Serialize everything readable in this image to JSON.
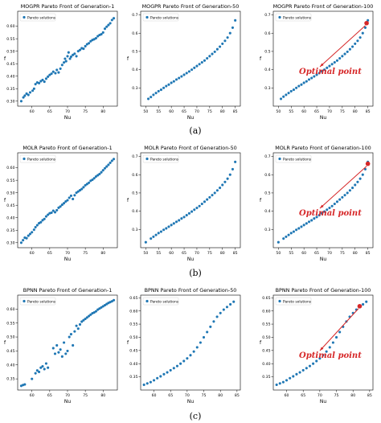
{
  "colors": {
    "points": "#1f77b4",
    "optimal": "#d62728",
    "arrow": "#d62728",
    "axis": "#000000"
  },
  "row_captions": [
    "(a)",
    "(b)",
    "(c)"
  ],
  "chart_data": [
    {
      "type": "scatter",
      "title": "MOGPR Pareto Front of Generation-1",
      "xlabel": "Nu",
      "ylabel": "f",
      "legend": "Pareto solutions",
      "legend_position": "top-left",
      "xlim": [
        56,
        84
      ],
      "ylim": [
        0.28,
        0.66
      ],
      "xticks": [
        60,
        65,
        70,
        75,
        80
      ],
      "yticks": [
        0.3,
        0.35,
        0.4,
        0.45,
        0.5,
        0.55,
        0.6
      ],
      "x": [
        57.0,
        57.6,
        58.0,
        58.5,
        59.0,
        59.5,
        60.2,
        60.6,
        61.0,
        61.5,
        62.0,
        62.5,
        63.0,
        63.5,
        64.0,
        64.5,
        65.0,
        65.5,
        66.0,
        66.6,
        67.0,
        67.5,
        68.0,
        68.5,
        69.0,
        69.3,
        69.6,
        70.0,
        70.3,
        70.7,
        71.0,
        71.5,
        72.0,
        72.5,
        73.0,
        73.5,
        74.0,
        74.5,
        75.0,
        75.5,
        76.0,
        76.5,
        77.0,
        77.5,
        78.0,
        78.5,
        79.0,
        79.5,
        80.0,
        80.5,
        81.0,
        81.5,
        82.0,
        82.5,
        83.0
      ],
      "y": [
        0.3,
        0.315,
        0.322,
        0.33,
        0.325,
        0.335,
        0.342,
        0.35,
        0.368,
        0.375,
        0.372,
        0.38,
        0.385,
        0.378,
        0.39,
        0.398,
        0.405,
        0.41,
        0.418,
        0.412,
        0.425,
        0.415,
        0.43,
        0.445,
        0.455,
        0.47,
        0.46,
        0.48,
        0.495,
        0.47,
        0.478,
        0.485,
        0.49,
        0.48,
        0.5,
        0.505,
        0.512,
        0.51,
        0.52,
        0.528,
        0.532,
        0.54,
        0.545,
        0.548,
        0.552,
        0.56,
        0.565,
        0.568,
        0.575,
        0.59,
        0.598,
        0.605,
        0.612,
        0.625,
        0.632
      ]
    },
    {
      "type": "scatter",
      "title": "MOGPR Pareto Front of Generation-50",
      "xlabel": "Nu",
      "ylabel": "f",
      "legend": "Pareto solutions",
      "legend_position": "top-left",
      "xlim": [
        48,
        87
      ],
      "ylim": [
        0.2,
        0.72
      ],
      "xticks": [
        50,
        55,
        60,
        65,
        70,
        75,
        80,
        85
      ],
      "yticks": [
        0.3,
        0.4,
        0.5,
        0.6,
        0.7
      ],
      "x": [
        51.0,
        52.0,
        53.0,
        54.0,
        55.0,
        56.0,
        57.0,
        58.0,
        59.0,
        60.0,
        61.0,
        62.0,
        63.0,
        64.0,
        65.0,
        66.0,
        67.0,
        68.0,
        69.0,
        70.0,
        71.0,
        72.0,
        73.0,
        74.0,
        75.0,
        76.0,
        77.0,
        78.0,
        79.0,
        80.0,
        81.0,
        82.0,
        83.0,
        84.0,
        85.0
      ],
      "y": [
        0.24,
        0.25,
        0.262,
        0.272,
        0.282,
        0.29,
        0.3,
        0.31,
        0.318,
        0.328,
        0.336,
        0.346,
        0.354,
        0.363,
        0.372,
        0.381,
        0.39,
        0.4,
        0.41,
        0.42,
        0.43,
        0.44,
        0.45,
        0.462,
        0.474,
        0.486,
        0.498,
        0.512,
        0.526,
        0.542,
        0.558,
        0.576,
        0.6,
        0.63,
        0.67
      ]
    },
    {
      "type": "scatter",
      "title": "MOGPR Pareto Front of Generation-100",
      "xlabel": "Nu",
      "ylabel": "f",
      "legend": "Pareto solutions",
      "legend_position": "top-left",
      "xlim": [
        48,
        87
      ],
      "ylim": [
        0.2,
        0.72
      ],
      "xticks": [
        50,
        55,
        60,
        65,
        70,
        75,
        80,
        85
      ],
      "yticks": [
        0.3,
        0.4,
        0.5,
        0.6,
        0.7
      ],
      "x": [
        51.0,
        52.0,
        53.0,
        54.0,
        55.0,
        56.0,
        57.0,
        58.0,
        59.0,
        60.0,
        61.0,
        62.0,
        63.0,
        64.0,
        65.0,
        66.0,
        67.0,
        68.0,
        69.0,
        70.0,
        71.0,
        72.0,
        73.0,
        74.0,
        75.0,
        76.0,
        77.0,
        78.0,
        79.0,
        80.0,
        81.0,
        82.0,
        83.0,
        84.0,
        85.0
      ],
      "y": [
        0.24,
        0.252,
        0.262,
        0.272,
        0.282,
        0.29,
        0.3,
        0.31,
        0.318,
        0.328,
        0.336,
        0.346,
        0.354,
        0.363,
        0.372,
        0.381,
        0.39,
        0.4,
        0.41,
        0.42,
        0.43,
        0.44,
        0.45,
        0.462,
        0.474,
        0.486,
        0.498,
        0.512,
        0.526,
        0.542,
        0.558,
        0.576,
        0.6,
        0.63,
        0.67
      ],
      "optimal_point": {
        "x": 84.5,
        "y": 0.655,
        "label": "Optimal point"
      }
    },
    {
      "type": "scatter",
      "title": "MOLR Pareto Front of Generation-1",
      "xlabel": "Nu",
      "ylabel": "f",
      "legend": "Pareto solutions",
      "legend_position": "top-left",
      "xlim": [
        56,
        84
      ],
      "ylim": [
        0.28,
        0.66
      ],
      "xticks": [
        60,
        65,
        70,
        75,
        80
      ],
      "yticks": [
        0.3,
        0.35,
        0.4,
        0.45,
        0.5,
        0.55,
        0.6
      ],
      "x": [
        57.0,
        57.5,
        58.0,
        58.5,
        59.0,
        59.5,
        60.0,
        60.6,
        61.0,
        61.5,
        62.0,
        62.5,
        63.0,
        63.5,
        64.0,
        64.5,
        65.0,
        65.5,
        66.0,
        66.5,
        67.0,
        67.5,
        68.0,
        68.5,
        69.0,
        69.5,
        70.0,
        70.5,
        71.0,
        71.5,
        72.0,
        72.5,
        73.0,
        73.5,
        74.0,
        74.5,
        75.0,
        75.5,
        76.0,
        76.5,
        77.0,
        77.5,
        78.0,
        78.5,
        79.0,
        79.5,
        80.0,
        80.5,
        81.0,
        81.5,
        82.0,
        82.5,
        83.0
      ],
      "y": [
        0.3,
        0.31,
        0.32,
        0.318,
        0.328,
        0.335,
        0.342,
        0.352,
        0.362,
        0.37,
        0.378,
        0.382,
        0.39,
        0.395,
        0.405,
        0.412,
        0.418,
        0.42,
        0.428,
        0.422,
        0.43,
        0.44,
        0.445,
        0.452,
        0.458,
        0.465,
        0.47,
        0.48,
        0.488,
        0.475,
        0.49,
        0.5,
        0.505,
        0.51,
        0.515,
        0.522,
        0.53,
        0.535,
        0.54,
        0.548,
        0.552,
        0.558,
        0.565,
        0.57,
        0.575,
        0.582,
        0.59,
        0.598,
        0.605,
        0.612,
        0.62,
        0.628,
        0.635
      ]
    },
    {
      "type": "scatter",
      "title": "MOLR Pareto Front of Generation-50",
      "xlabel": "Nu",
      "ylabel": "f",
      "legend": "Pareto solutions",
      "legend_position": "top-left",
      "xlim": [
        48,
        87
      ],
      "ylim": [
        0.2,
        0.72
      ],
      "xticks": [
        50,
        55,
        60,
        65,
        70,
        75,
        80,
        85
      ],
      "yticks": [
        0.3,
        0.4,
        0.5,
        0.6,
        0.7
      ],
      "x": [
        50.0,
        52.0,
        53.0,
        54.0,
        55.0,
        56.0,
        57.0,
        58.0,
        59.0,
        60.0,
        61.0,
        62.0,
        63.0,
        64.0,
        65.0,
        66.0,
        67.0,
        68.0,
        69.0,
        70.0,
        71.0,
        72.0,
        73.0,
        74.0,
        75.0,
        76.0,
        77.0,
        78.0,
        79.0,
        80.0,
        81.0,
        82.0,
        83.0,
        84.0,
        85.0
      ],
      "y": [
        0.23,
        0.25,
        0.26,
        0.27,
        0.28,
        0.288,
        0.298,
        0.306,
        0.315,
        0.324,
        0.333,
        0.342,
        0.35,
        0.36,
        0.368,
        0.378,
        0.388,
        0.398,
        0.408,
        0.418,
        0.428,
        0.44,
        0.452,
        0.464,
        0.476,
        0.488,
        0.5,
        0.514,
        0.528,
        0.544,
        0.56,
        0.578,
        0.6,
        0.63,
        0.67
      ]
    },
    {
      "type": "scatter",
      "title": "MOLR Pareto Front of Generation-100",
      "xlabel": "Nu",
      "ylabel": "f",
      "legend": "Pareto solutions",
      "legend_position": "top-left",
      "xlim": [
        48,
        87
      ],
      "ylim": [
        0.2,
        0.72
      ],
      "xticks": [
        50,
        55,
        60,
        65,
        70,
        75,
        80,
        85
      ],
      "yticks": [
        0.3,
        0.4,
        0.5,
        0.6,
        0.7
      ],
      "x": [
        50.0,
        52.0,
        53.0,
        54.0,
        55.0,
        56.0,
        57.0,
        58.0,
        59.0,
        60.0,
        61.0,
        62.0,
        63.0,
        64.0,
        65.0,
        66.0,
        67.0,
        68.0,
        69.0,
        70.0,
        71.0,
        72.0,
        73.0,
        74.0,
        75.0,
        76.0,
        77.0,
        78.0,
        79.0,
        80.0,
        81.0,
        82.0,
        83.0,
        84.0,
        85.0
      ],
      "y": [
        0.23,
        0.25,
        0.26,
        0.27,
        0.28,
        0.288,
        0.298,
        0.306,
        0.315,
        0.324,
        0.333,
        0.342,
        0.35,
        0.36,
        0.368,
        0.378,
        0.388,
        0.398,
        0.408,
        0.418,
        0.428,
        0.44,
        0.452,
        0.464,
        0.476,
        0.488,
        0.5,
        0.514,
        0.528,
        0.544,
        0.56,
        0.578,
        0.6,
        0.63,
        0.67
      ],
      "optimal_point": {
        "x": 85.0,
        "y": 0.66,
        "label": "Optimal point"
      }
    },
    {
      "type": "scatter",
      "title": "BPNN Pareto Front of Generation-1",
      "xlabel": "Nu",
      "ylabel": "f",
      "legend": "Pareto solutions",
      "legend_position": "top-left",
      "xlim": [
        56,
        84
      ],
      "ylim": [
        0.31,
        0.65
      ],
      "xticks": [
        60,
        65,
        70,
        75,
        80
      ],
      "yticks": [
        0.35,
        0.4,
        0.45,
        0.5,
        0.55,
        0.6
      ],
      "x": [
        57.0,
        57.5,
        58.0,
        60.0,
        61.0,
        61.5,
        62.0,
        62.5,
        63.0,
        63.5,
        64.0,
        64.5,
        66.0,
        66.5,
        67.0,
        67.5,
        68.0,
        68.5,
        69.0,
        69.5,
        70.0,
        70.5,
        71.0,
        71.5,
        72.0,
        72.5,
        73.0,
        73.5,
        74.0,
        74.5,
        75.0,
        75.5,
        76.0,
        76.5,
        77.0,
        77.5,
        78.0,
        78.5,
        79.0,
        79.5,
        80.0,
        80.5,
        81.0,
        81.5,
        82.0,
        82.5,
        83.0
      ],
      "y": [
        0.325,
        0.328,
        0.33,
        0.35,
        0.37,
        0.38,
        0.375,
        0.39,
        0.395,
        0.385,
        0.405,
        0.39,
        0.46,
        0.44,
        0.47,
        0.445,
        0.455,
        0.43,
        0.48,
        0.44,
        0.45,
        0.5,
        0.51,
        0.47,
        0.52,
        0.54,
        0.53,
        0.545,
        0.555,
        0.56,
        0.565,
        0.57,
        0.575,
        0.58,
        0.585,
        0.588,
        0.592,
        0.598,
        0.602,
        0.606,
        0.61,
        0.614,
        0.618,
        0.622,
        0.625,
        0.628,
        0.632
      ]
    },
    {
      "type": "scatter",
      "title": "BPNN Pareto Front of Generation-50",
      "xlabel": "Nu",
      "ylabel": "f",
      "legend": "Pareto solutions",
      "legend_position": "top-left",
      "xlim": [
        56,
        86
      ],
      "ylim": [
        0.3,
        0.66
      ],
      "xticks": [
        60,
        65,
        70,
        75,
        80,
        85
      ],
      "yticks": [
        0.35,
        0.4,
        0.45,
        0.5,
        0.55,
        0.6,
        0.65
      ],
      "x": [
        57.0,
        58.0,
        59.0,
        60.0,
        61.0,
        62.0,
        63.0,
        64.0,
        65.0,
        66.0,
        67.0,
        68.0,
        69.0,
        70.0,
        71.0,
        72.0,
        73.0,
        74.0,
        75.0,
        76.0,
        77.0,
        78.0,
        79.0,
        80.0,
        81.0,
        82.0,
        83.0,
        84.0
      ],
      "y": [
        0.32,
        0.325,
        0.33,
        0.337,
        0.345,
        0.352,
        0.36,
        0.367,
        0.375,
        0.383,
        0.391,
        0.4,
        0.41,
        0.42,
        0.432,
        0.446,
        0.462,
        0.48,
        0.5,
        0.52,
        0.54,
        0.56,
        0.578,
        0.592,
        0.605,
        0.615,
        0.625,
        0.635
      ]
    },
    {
      "type": "scatter",
      "title": "BPNN Pareto Front of Generation-100",
      "xlabel": "Nu",
      "ylabel": "f",
      "legend": "Pareto solutions",
      "legend_position": "top-left",
      "xlim": [
        56,
        86
      ],
      "ylim": [
        0.3,
        0.66
      ],
      "xticks": [
        60,
        65,
        70,
        75,
        80,
        85
      ],
      "yticks": [
        0.35,
        0.4,
        0.45,
        0.5,
        0.55,
        0.6,
        0.65
      ],
      "x": [
        57.0,
        58.0,
        59.0,
        60.0,
        61.0,
        62.0,
        63.0,
        64.0,
        65.0,
        66.0,
        67.0,
        68.0,
        69.0,
        70.0,
        71.0,
        72.0,
        73.0,
        74.0,
        75.0,
        76.0,
        77.0,
        78.0,
        79.0,
        80.0,
        81.0,
        82.0,
        83.0,
        84.0
      ],
      "y": [
        0.32,
        0.325,
        0.33,
        0.337,
        0.345,
        0.352,
        0.36,
        0.367,
        0.375,
        0.383,
        0.391,
        0.4,
        0.41,
        0.42,
        0.432,
        0.446,
        0.462,
        0.48,
        0.5,
        0.52,
        0.54,
        0.56,
        0.578,
        0.592,
        0.605,
        0.615,
        0.625,
        0.635
      ],
      "optimal_point": {
        "x": 82.0,
        "y": 0.618,
        "label": "Optimal point"
      }
    }
  ]
}
